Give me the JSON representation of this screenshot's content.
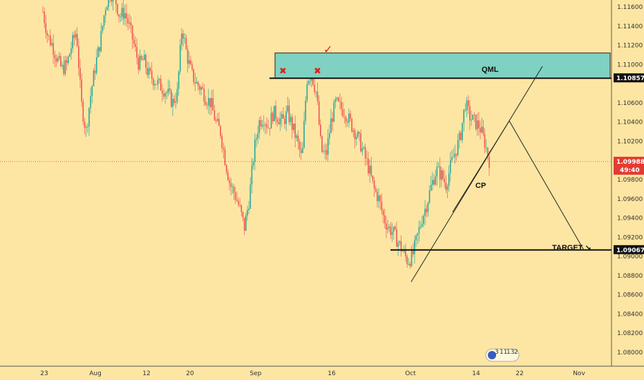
{
  "chart_data": {
    "type": "candlestick",
    "title": "",
    "xlabel": "",
    "ylabel": "",
    "ylim": [
      1.0798,
      1.1175
    ],
    "x_ticks": [
      "23",
      "Aug",
      "12",
      "20",
      "Sep",
      "16",
      "Oct",
      "14",
      "22",
      "Nov"
    ],
    "y_ticks": [
      "1.11600",
      "1.11400",
      "1.11200",
      "1.11000",
      "1.10600",
      "1.10400",
      "1.10200",
      "1.09800",
      "1.09600",
      "1.09400",
      "1.09200",
      "1.09000",
      "1.08800",
      "1.08600",
      "1.08400",
      "1.08200",
      "1.08000"
    ],
    "y_tick_values": [
      1.116,
      1.114,
      1.112,
      1.11,
      1.106,
      1.104,
      1.102,
      1.098,
      1.096,
      1.094,
      1.092,
      1.09,
      1.088,
      1.086,
      1.084,
      1.082,
      1.08
    ],
    "current_price": {
      "label": "1.09988",
      "value": 1.09988,
      "countdown": "49:40"
    },
    "levels": [
      {
        "label": "1.10857",
        "value": 1.10857
      },
      {
        "label": "1.09067",
        "value": 1.09067
      }
    ],
    "qml_zone": {
      "label": "QML",
      "top": 1.1112,
      "bottom": 1.10857
    },
    "annotations": {
      "cp": "CP",
      "target": "TARGET ↘",
      "check": "✓",
      "cross": "✖"
    },
    "badge": {
      "items": [
        "3",
        "11",
        "13",
        "2"
      ]
    },
    "price_path": [
      [
        1.1155,
        1.113,
        1.112,
        1.1105,
        1.1095,
        1.11,
        1.112,
        1.1135,
        1.106,
        1.103
      ],
      [
        1.107,
        1.11,
        1.1125,
        1.116,
        1.1175,
        1.117,
        1.115,
        1.1155,
        1.114,
        1.112
      ],
      [
        1.11,
        1.1105,
        1.109,
        1.1085,
        1.108,
        1.1075,
        1.107,
        1.106,
        1.107,
        1.114
      ],
      [
        1.111,
        1.109,
        1.108,
        1.1075,
        1.1065,
        1.106,
        1.104,
        1.103,
        1.1,
        1.0975
      ],
      [
        1.0965,
        1.095,
        1.093,
        1.096,
        1.101,
        1.104,
        1.1045,
        1.1035,
        1.105,
        1.1045
      ],
      [
        1.104,
        1.105,
        1.1035,
        1.102,
        1.1,
        1.1085,
        1.109,
        1.107,
        1.101,
        1.1005
      ],
      [
        1.104,
        1.106,
        1.1055,
        1.105,
        1.104,
        1.103,
        1.102,
        1.1005,
        1.099,
        1.097
      ],
      [
        1.096,
        1.094,
        1.093,
        1.0925,
        1.0915,
        1.0905,
        1.0895,
        1.09,
        1.092,
        1.094
      ],
      [
        1.0955,
        1.0975,
        1.099,
        1.0985,
        1.0975,
        1.0995,
        1.101,
        1.1025,
        1.106,
        1.1045
      ],
      [
        1.104,
        1.1035,
        1.102,
        1.1
      ]
    ]
  }
}
